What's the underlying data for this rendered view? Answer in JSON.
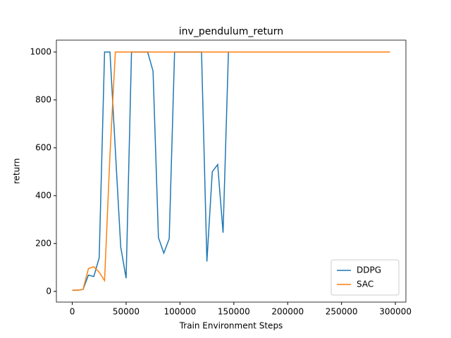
{
  "chart_data": {
    "type": "line",
    "title": "inv_pendulum_return",
    "x_label": "Train Environment Steps",
    "y_label": "return",
    "xlim": [
      -14750,
      309750
    ],
    "ylim": [
      -44.75,
      1049.75
    ],
    "xticks": [
      0,
      50000,
      100000,
      150000,
      200000,
      250000,
      300000
    ],
    "yticks": [
      0,
      200,
      400,
      600,
      800,
      1000
    ],
    "legend": "lower right",
    "series": [
      {
        "name": "DDPG",
        "color": "#1f77b4",
        "x": [
          0,
          5000,
          10000,
          15000,
          20000,
          25000,
          30000,
          35000,
          40000,
          45000,
          50000,
          55000,
          60000,
          65000,
          70000,
          75000,
          80000,
          85000,
          90000,
          95000,
          100000,
          105000,
          110000,
          115000,
          120000,
          125000,
          130000,
          135000,
          140000,
          145000
        ],
        "values": [
          5,
          5,
          8,
          68,
          62,
          140,
          1000,
          1000,
          590,
          185,
          55,
          1000,
          1000,
          1000,
          1000,
          920,
          225,
          160,
          220,
          1000,
          1000,
          1000,
          1000,
          1000,
          1000,
          125,
          500,
          530,
          245,
          1000
        ]
      },
      {
        "name": "SAC",
        "color": "#ff7f0e",
        "x": [
          0,
          5000,
          10000,
          15000,
          20000,
          25000,
          30000,
          35000,
          40000,
          45000,
          50000,
          55000,
          60000,
          65000,
          70000,
          75000,
          80000,
          85000,
          90000,
          95000,
          100000,
          105000,
          110000,
          115000,
          120000,
          125000,
          130000,
          135000,
          140000,
          145000,
          150000,
          155000,
          160000,
          165000,
          170000,
          175000,
          180000,
          185000,
          190000,
          195000,
          200000,
          205000,
          210000,
          215000,
          220000,
          225000,
          230000,
          235000,
          240000,
          245000,
          250000,
          255000,
          260000,
          265000,
          270000,
          275000,
          280000,
          285000,
          290000,
          295000
        ],
        "values": [
          5,
          5,
          8,
          95,
          103,
          80,
          45,
          570,
          1000,
          1000,
          1000,
          1000,
          1000,
          1000,
          1000,
          1000,
          1000,
          1000,
          1000,
          1000,
          1000,
          1000,
          1000,
          1000,
          1000,
          1000,
          1000,
          1000,
          1000,
          1000,
          1000,
          1000,
          1000,
          1000,
          1000,
          1000,
          1000,
          1000,
          1000,
          1000,
          1000,
          1000,
          1000,
          1000,
          1000,
          1000,
          1000,
          1000,
          1000,
          1000,
          1000,
          1000,
          1000,
          1000,
          1000,
          1000,
          1000,
          1000,
          1000,
          1000
        ]
      }
    ]
  }
}
